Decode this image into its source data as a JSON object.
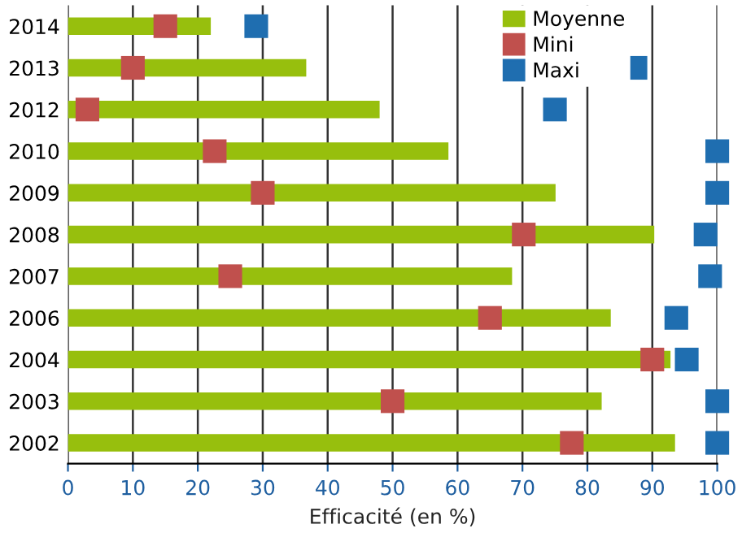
{
  "chart_data": {
    "type": "bar",
    "orientation": "horizontal",
    "xlabel": "Efficacité (en %)",
    "categories": [
      "2014",
      "2013",
      "2012",
      "2010",
      "2009",
      "2008",
      "2007",
      "2006",
      "2004",
      "2003",
      "2002"
    ],
    "series": [
      {
        "name": "Moyenne",
        "color": "#97bf0d",
        "values": [
          22,
          36.7,
          48,
          58.6,
          75.1,
          90.3,
          68.4,
          83.6,
          92.8,
          82.2,
          93.5
        ]
      },
      {
        "name": "Mini",
        "type": "scatter",
        "color": "#c0504d",
        "values": [
          15,
          10,
          3,
          22.6,
          30,
          70.2,
          25,
          65,
          90,
          50,
          77.6
        ]
      },
      {
        "name": "Maxi",
        "type": "scatter",
        "color": "#1f6eb0",
        "values": [
          29,
          87.4,
          75,
          100,
          100,
          98.2,
          98.9,
          93.7,
          95.3,
          100,
          100
        ]
      }
    ],
    "xlim": [
      0,
      100
    ],
    "xticks": [
      0,
      10,
      20,
      30,
      40,
      50,
      60,
      70,
      80,
      90,
      100
    ],
    "grid": "x",
    "legend": "top right",
    "marker": "square"
  }
}
